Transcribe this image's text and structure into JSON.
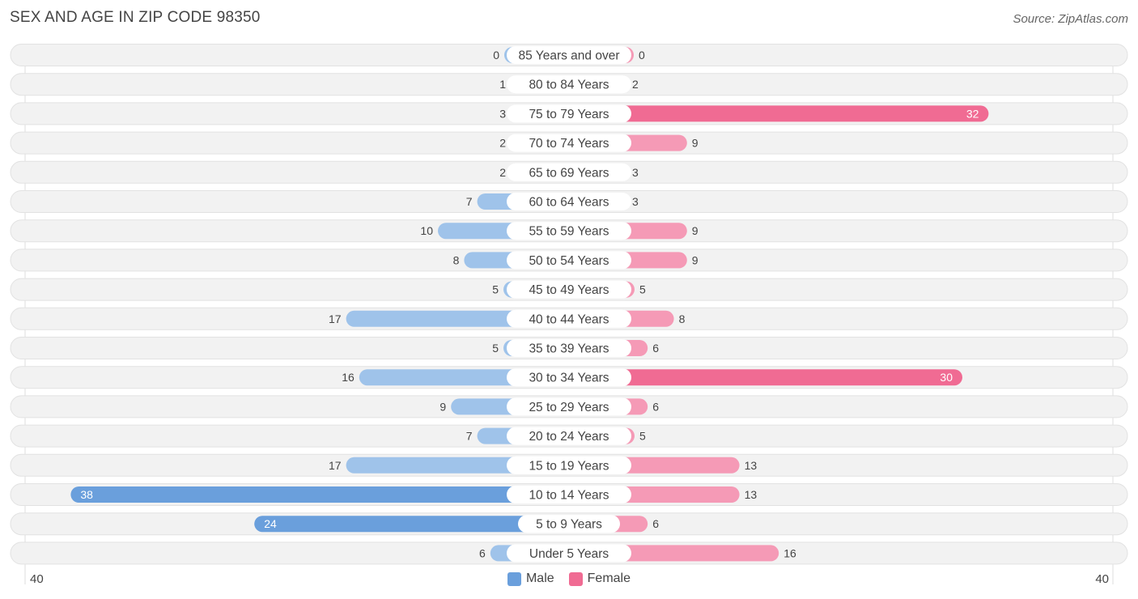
{
  "header": {
    "title": "SEX AND AGE IN ZIP CODE 98350",
    "source": "Source: ZipAtlas.com"
  },
  "axis": {
    "left_label": "40",
    "right_label": "40"
  },
  "legend": {
    "male_label": "Male",
    "female_label": "Female"
  },
  "colors": {
    "male": "#9fc3ea",
    "male_strong": "#6a9fdc",
    "female": "#f59ab6",
    "female_strong": "#f06b93",
    "row_bg": "#f2f2f2"
  },
  "chart_data": {
    "type": "bar",
    "orientation": "horizontal-diverging",
    "title": "SEX AND AGE IN ZIP CODE 98350",
    "xlim": [
      -40,
      40
    ],
    "categories": [
      "85 Years and over",
      "80 to 84 Years",
      "75 to 79 Years",
      "70 to 74 Years",
      "65 to 69 Years",
      "60 to 64 Years",
      "55 to 59 Years",
      "50 to 54 Years",
      "45 to 49 Years",
      "40 to 44 Years",
      "35 to 39 Years",
      "30 to 34 Years",
      "25 to 29 Years",
      "20 to 24 Years",
      "15 to 19 Years",
      "10 to 14 Years",
      "5 to 9 Years",
      "Under 5 Years"
    ],
    "series": [
      {
        "name": "Male",
        "values": [
          0,
          1,
          3,
          2,
          2,
          7,
          10,
          8,
          5,
          17,
          5,
          16,
          9,
          7,
          17,
          38,
          24,
          6
        ]
      },
      {
        "name": "Female",
        "values": [
          0,
          2,
          32,
          9,
          3,
          3,
          9,
          9,
          5,
          8,
          6,
          30,
          6,
          5,
          13,
          13,
          6,
          16
        ]
      }
    ],
    "legend_position": "bottom-center"
  }
}
